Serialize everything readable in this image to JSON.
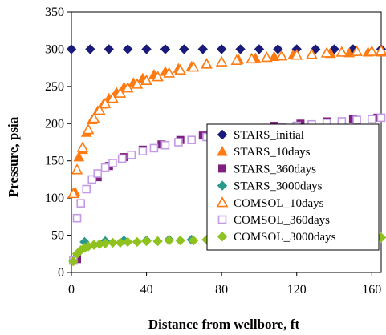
{
  "chart_data": {
    "type": "scatter",
    "title": "",
    "xlabel": "Distance from wellbore, ft",
    "ylabel": "Pressure, psia",
    "xlim": [
      0,
      165
    ],
    "ylim": [
      0,
      350
    ],
    "xticks": [
      0,
      40,
      80,
      120,
      160
    ],
    "yticks": [
      0,
      50,
      100,
      150,
      200,
      250,
      300,
      350
    ],
    "grid": false,
    "legend_position": "lower-right",
    "series": [
      {
        "name": "STARS_initial",
        "marker": "diamond",
        "filled": true,
        "color": "#1a1a7a",
        "x": [
          0,
          10,
          20,
          30,
          40,
          50,
          60,
          70,
          80,
          90,
          100,
          110,
          120,
          130,
          140,
          150,
          165
        ],
        "y": [
          300,
          300,
          300,
          300,
          300,
          300,
          300,
          300,
          300,
          300,
          300,
          300,
          300,
          300,
          300,
          300,
          300
        ]
      },
      {
        "name": "STARS_10days",
        "marker": "triangle",
        "filled": true,
        "color": "#ff7a10",
        "x": [
          2,
          4,
          6,
          8,
          11,
          14,
          17,
          20,
          24,
          28,
          33,
          38,
          44,
          50,
          57,
          64,
          72,
          80,
          89,
          98,
          108,
          118,
          128,
          138,
          148,
          158,
          165
        ],
        "y": [
          108,
          155,
          165,
          188,
          205,
          217,
          226,
          234,
          242,
          249,
          255,
          261,
          266,
          270,
          274,
          277,
          281,
          283,
          286,
          288,
          290,
          292,
          293,
          294,
          295,
          296,
          296
        ]
      },
      {
        "name": "STARS_360days",
        "marker": "square",
        "filled": true,
        "color": "#7f1f7f",
        "x": [
          3,
          8,
          14,
          20,
          28,
          38,
          48,
          58,
          70,
          82,
          95,
          108,
          122,
          136,
          150,
          163
        ],
        "y": [
          18,
          112,
          128,
          143,
          155,
          165,
          172,
          178,
          184,
          189,
          193,
          197,
          200,
          203,
          206,
          208
        ]
      },
      {
        "name": "STARS_3000days",
        "marker": "diamond",
        "filled": true,
        "color": "#2a9a8a",
        "x": [
          7,
          18,
          28,
          40,
          52,
          64,
          76,
          88,
          100,
          112,
          124,
          136,
          148,
          162
        ],
        "y": [
          41,
          42,
          43,
          43,
          44,
          44,
          45,
          45,
          45,
          45,
          45,
          46,
          46,
          45
        ]
      },
      {
        "name": "COMSOL_10days",
        "marker": "triangle",
        "filled": false,
        "color": "#ff7a10",
        "x": [
          1,
          3,
          6,
          9,
          12,
          15,
          18,
          22,
          26,
          30,
          35,
          40,
          46,
          52,
          58,
          65,
          72,
          80,
          88,
          96,
          104,
          112,
          120,
          128,
          136,
          144,
          152,
          160,
          165
        ],
        "y": [
          106,
          138,
          168,
          192,
          207,
          218,
          227,
          234,
          241,
          248,
          253,
          258,
          263,
          268,
          272,
          276,
          280,
          283,
          285,
          287,
          289,
          291,
          292,
          293,
          295,
          296,
          297,
          297,
          298
        ]
      },
      {
        "name": "COMSOL_360days",
        "marker": "square",
        "filled": false,
        "color": "#c39ae6",
        "x": [
          1,
          3,
          5,
          8,
          11,
          14,
          18,
          22,
          27,
          32,
          38,
          44,
          50,
          57,
          64,
          72,
          80,
          88,
          96,
          104,
          112,
          120,
          128,
          136,
          144,
          152,
          160,
          165
        ],
        "y": [
          16,
          73,
          93,
          112,
          125,
          133,
          141,
          147,
          153,
          158,
          163,
          167,
          171,
          175,
          178,
          182,
          185,
          188,
          190,
          193,
          195,
          197,
          199,
          201,
          203,
          205,
          206,
          208
        ]
      },
      {
        "name": "COMSOL_3000days",
        "marker": "diamond",
        "filled": true,
        "color": "#8fc21f",
        "x": [
          1,
          3,
          5,
          7,
          9,
          12,
          15,
          18,
          22,
          26,
          30,
          35,
          40,
          46,
          52,
          58,
          65,
          72,
          80,
          88,
          96,
          104,
          112,
          120,
          128,
          136,
          144,
          152,
          160,
          165
        ],
        "y": [
          15,
          25,
          30,
          33,
          35,
          37,
          38,
          39,
          40,
          40,
          41,
          41,
          42,
          42,
          43,
          43,
          43,
          44,
          44,
          44,
          45,
          45,
          45,
          45,
          46,
          46,
          46,
          47,
          47,
          47
        ]
      }
    ]
  }
}
